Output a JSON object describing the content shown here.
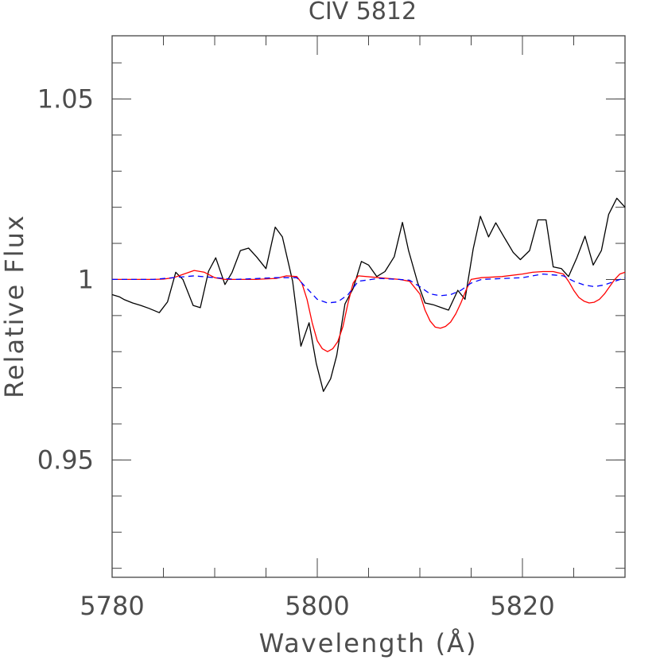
{
  "chart_data": {
    "type": "line",
    "title": "CIV 5812",
    "xlabel": "Wavelength (Å)",
    "ylabel": "Relative Flux",
    "xlim": [
      5780,
      5830
    ],
    "ylim": [
      0.9175,
      1.0675
    ],
    "grid": false,
    "x_ticks": [
      5780,
      5800,
      5820
    ],
    "x_tick_labels": [
      "5780",
      "5800",
      "5820"
    ],
    "y_ticks": [
      0.95,
      1.0,
      1.05
    ],
    "y_tick_labels": [
      "0.95",
      "1",
      "1.05"
    ],
    "series": [
      {
        "color": "#000000",
        "style": "solid",
        "x": [
          5780,
          5780.7,
          5781.2,
          5782.0,
          5782.8,
          5783.6,
          5784.6,
          5785.4,
          5786.2,
          5786.9,
          5787.9,
          5788.6,
          5789.4,
          5790.1,
          5791.0,
          5791.7,
          5792.5,
          5793.3,
          5794.1,
          5795.0,
          5795.9,
          5796.6,
          5797.6,
          5798.4,
          5799.2,
          5799.9,
          5800.6,
          5801.3,
          5801.9,
          5802.7,
          5803.5,
          5804.3,
          5805.0,
          5805.8,
          5806.6,
          5807.5,
          5808.3,
          5808.9,
          5809.8,
          5810.5,
          5811.3,
          5812.1,
          5812.8,
          5813.7,
          5814.4,
          5815.2,
          5815.9,
          5816.7,
          5817.4,
          5818.2,
          5819.1,
          5819.8,
          5820.7,
          5821.5,
          5822.3,
          5823.0,
          5823.8,
          5824.5,
          5825.3,
          5826.1,
          5826.9,
          5827.7,
          5828.4,
          5829.2,
          5830
        ],
        "y": [
          0.9958,
          0.9952,
          0.9944,
          0.9935,
          0.9928,
          0.992,
          0.9908,
          0.9938,
          1.002,
          1.0,
          0.9928,
          0.9922,
          1.0023,
          1.006,
          0.9986,
          1.002,
          1.008,
          1.0087,
          1.0062,
          1.003,
          1.0145,
          1.0118,
          0.9995,
          0.9815,
          0.988,
          0.9768,
          0.969,
          0.9725,
          0.979,
          0.9932,
          0.9975,
          1.005,
          1.004,
          1.0008,
          1.0022,
          1.0063,
          1.0158,
          1.008,
          0.999,
          0.9935,
          0.993,
          0.9922,
          0.9915,
          0.997,
          0.9945,
          1.0085,
          1.0175,
          1.0118,
          1.0157,
          1.0118,
          1.0075,
          1.0055,
          1.008,
          1.0165,
          1.0165,
          1.0035,
          1.003,
          1.0008,
          1.006,
          1.012,
          1.004,
          1.008,
          1.018,
          1.0225,
          1.02
        ]
      },
      {
        "color": "#ff0000",
        "style": "solid",
        "x": [
          5780,
          5782,
          5784,
          5785,
          5786,
          5787,
          5788,
          5789,
          5790,
          5791,
          5792,
          5794,
          5796,
          5797,
          5798,
          5798.5,
          5799,
          5799.5,
          5800,
          5800.5,
          5801,
          5801.5,
          5802,
          5802.5,
          5803,
          5803.5,
          5804,
          5806,
          5808,
          5809,
          5810,
          5810.5,
          5811,
          5811.5,
          5812,
          5812.5,
          5813,
          5813.5,
          5814,
          5814.5,
          5815,
          5816,
          5818,
          5820,
          5821,
          5822,
          5823,
          5824,
          5824.5,
          5825,
          5825.5,
          5826,
          5826.5,
          5827,
          5827.5,
          5828,
          5828.5,
          5829,
          5829.5,
          5830
        ],
        "y": [
          1.0,
          1.0,
          1.0,
          1.0001,
          1.0005,
          1.0015,
          1.0025,
          1.002,
          1.0005,
          1.0,
          1.0,
          1.0,
          1.0003,
          1.001,
          1.0008,
          0.999,
          0.9945,
          0.988,
          0.983,
          0.9808,
          0.98,
          0.9808,
          0.9828,
          0.987,
          0.9935,
          0.999,
          1.001,
          1.0005,
          1.0,
          0.9995,
          0.996,
          0.9915,
          0.9885,
          0.9868,
          0.9865,
          0.987,
          0.9882,
          0.9905,
          0.9935,
          0.997,
          1.0,
          1.0005,
          1.0008,
          1.0015,
          1.002,
          1.0022,
          1.0022,
          1.0015,
          0.9995,
          0.997,
          0.995,
          0.994,
          0.9935,
          0.9937,
          0.9945,
          0.996,
          0.998,
          1.0,
          1.0015,
          1.002
        ]
      },
      {
        "color": "#0000ff",
        "style": "dashed",
        "x": [
          5780,
          5784,
          5788,
          5792,
          5796,
          5798,
          5799,
          5800,
          5801,
          5802,
          5803,
          5804,
          5806,
          5808,
          5809,
          5810,
          5811,
          5812,
          5813,
          5814,
          5815,
          5816,
          5820,
          5822,
          5824,
          5825,
          5826,
          5827,
          5828,
          5829,
          5830
        ],
        "y": [
          1.0,
          1.0,
          1.001,
          1.0,
          1.0005,
          1.0005,
          0.9975,
          0.9945,
          0.9935,
          0.9938,
          0.9958,
          0.9995,
          1.0003,
          1.0,
          0.9998,
          0.998,
          0.996,
          0.9955,
          0.9958,
          0.997,
          0.999,
          1.0,
          1.0005,
          1.0015,
          1.001,
          0.9995,
          0.9985,
          0.998,
          0.9985,
          0.9995,
          1.0005
        ]
      }
    ]
  }
}
